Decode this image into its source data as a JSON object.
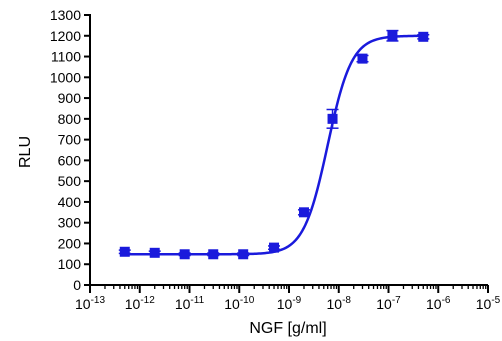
{
  "chart_data": {
    "type": "scatter",
    "title": "",
    "xlabel": "NGF [g/ml]",
    "ylabel": "RLU",
    "x_scale": "log",
    "xlim": [
      1e-13,
      1e-05
    ],
    "ylim": [
      0,
      1300
    ],
    "y_ticks": [
      0,
      100,
      200,
      300,
      400,
      500,
      600,
      700,
      800,
      900,
      1000,
      1100,
      1200,
      1300
    ],
    "x_ticks": [
      {
        "base": "10",
        "exp": "-13",
        "value": 1e-13
      },
      {
        "base": "10",
        "exp": "-12",
        "value": 1e-12
      },
      {
        "base": "10",
        "exp": "-11",
        "value": 1e-11
      },
      {
        "base": "10",
        "exp": "-10",
        "value": 1e-10
      },
      {
        "base": "10",
        "exp": "-9",
        "value": 1e-09
      },
      {
        "base": "10",
        "exp": "-8",
        "value": 1e-08
      },
      {
        "base": "10",
        "exp": "-7",
        "value": 1e-07
      },
      {
        "base": "10",
        "exp": "-6",
        "value": 1e-06
      },
      {
        "base": "10",
        "exp": "-5",
        "value": 1e-05
      }
    ],
    "grid": false,
    "color": "#1a1adc",
    "series": [
      {
        "x": [
          5e-13,
          2e-12,
          8e-12,
          3e-11,
          1.2e-10,
          5e-10,
          2e-09,
          7.5e-09,
          3e-08,
          1.2e-07,
          5e-07
        ],
        "y": [
          160,
          155,
          148,
          148,
          148,
          180,
          350,
          800,
          1090,
          1200,
          1195
        ],
        "err": [
          8,
          8,
          6,
          6,
          6,
          8,
          12,
          45,
          15,
          25,
          10
        ]
      }
    ],
    "fit_curve": {
      "bottom": 148,
      "top": 1200,
      "ec50": 6e-09,
      "hill": 1.8
    }
  }
}
